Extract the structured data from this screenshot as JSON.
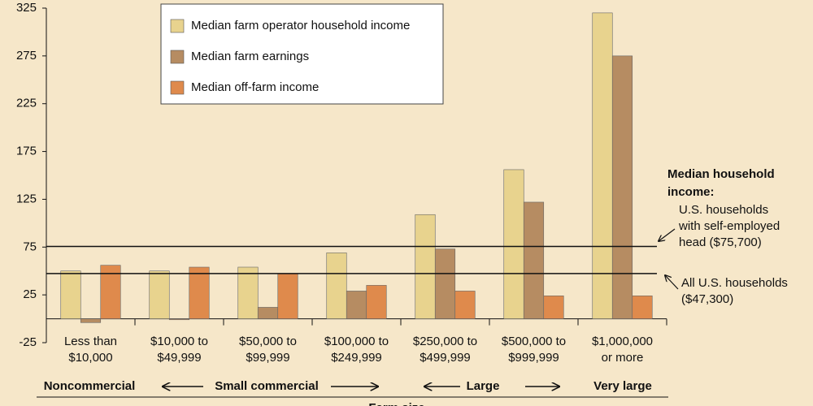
{
  "chart_data": {
    "type": "bar",
    "xlabel": "Farm size",
    "categories": [
      [
        "Less than",
        "$10,000"
      ],
      [
        "$10,000 to",
        "$49,999"
      ],
      [
        "$50,000 to",
        "$99,999"
      ],
      [
        "$100,000 to",
        "$249,999"
      ],
      [
        "$250,000 to",
        "$499,999"
      ],
      [
        "$500,000 to",
        "$999,999"
      ],
      [
        "$1,000,000",
        "or more"
      ]
    ],
    "series": [
      {
        "name": "Median farm operator household income",
        "color": "#e8d38e",
        "values": [
          50,
          50,
          54,
          69,
          109,
          156,
          320
        ]
      },
      {
        "name": "Median farm earnings",
        "color": "#b68c62",
        "values": [
          -4,
          -1,
          12,
          29,
          73,
          122,
          275
        ]
      },
      {
        "name": "Median off-farm income",
        "color": "#df8a4c",
        "values": [
          56,
          54,
          47,
          35,
          29,
          24,
          24
        ]
      }
    ],
    "ylim": [
      -25,
      325
    ],
    "yticks": [
      -25,
      25,
      75,
      125,
      175,
      225,
      275,
      325
    ],
    "groups": [
      "Noncommercial",
      "Small commercial",
      "Large",
      "Very large"
    ],
    "annotation_title": [
      "Median household",
      "income:"
    ],
    "reference_lines": [
      {
        "value": 75.7,
        "label": [
          "U.S. households",
          "with self-employed",
          "head ($75,700)"
        ]
      },
      {
        "value": 47.3,
        "label": [
          "All U.S. households",
          "($47,300)"
        ]
      }
    ]
  }
}
